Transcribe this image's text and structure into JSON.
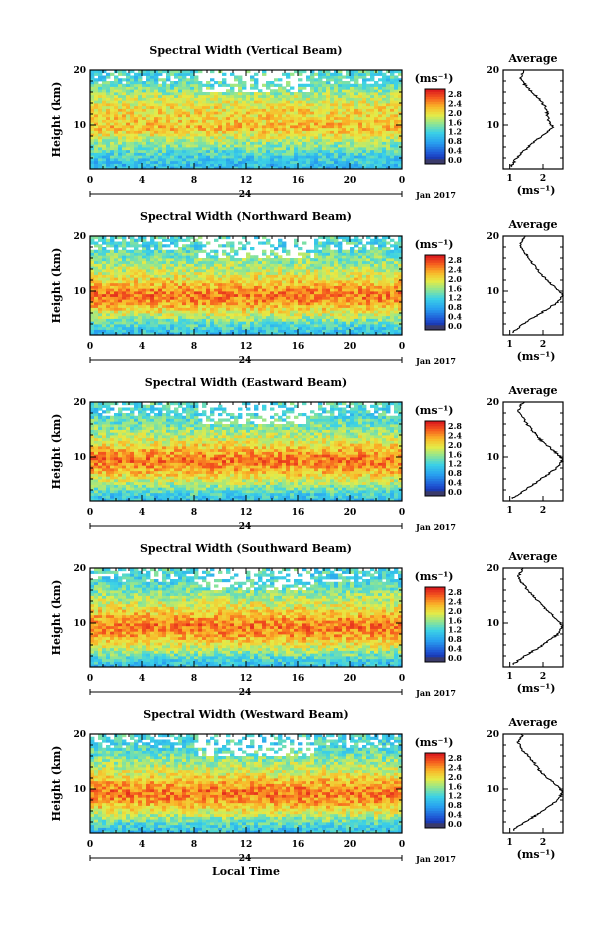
{
  "chart_data": [
    {
      "type": "heatmap",
      "title": "Spectral Width (Vertical Beam)",
      "ylabel": "Height (km)",
      "xlabel": "",
      "x_ticks": [
        "0",
        "4",
        "8",
        "12",
        "16",
        "20",
        "0"
      ],
      "xlim": [
        0,
        24
      ],
      "y_ticks": [
        "20",
        "10"
      ],
      "ylim": [
        2,
        20
      ],
      "day_label": "24",
      "month_label": "Jan 2017",
      "colorbar": {
        "unit": "(ms⁻¹)",
        "ticks": [
          "2.8",
          "2.4",
          "2.0",
          "1.6",
          "1.2",
          "0.8",
          "0.4",
          "0.0"
        ],
        "range": [
          0,
          3.0
        ]
      },
      "average": {
        "title": "Average",
        "xlabel": "(ms⁻¹)",
        "x_ticks": [
          "1",
          "2"
        ],
        "xlim": [
          0.8,
          2.6
        ],
        "y_ticks": [
          "20",
          "10"
        ],
        "heights": [
          2.5,
          4,
          6,
          8,
          9.5,
          11,
          13,
          15,
          17,
          18.5,
          20
        ],
        "values": [
          1.05,
          1.2,
          1.55,
          1.95,
          2.3,
          2.15,
          2.1,
          1.85,
          1.5,
          1.3,
          1.45
        ]
      }
    },
    {
      "type": "heatmap",
      "title": "Spectral Width (Northward Beam)",
      "ylabel": "Height (km)",
      "xlabel": "",
      "x_ticks": [
        "0",
        "4",
        "8",
        "12",
        "16",
        "20",
        "0"
      ],
      "xlim": [
        0,
        24
      ],
      "y_ticks": [
        "20",
        "10"
      ],
      "ylim": [
        2,
        20
      ],
      "day_label": "24",
      "month_label": "Jan 2017",
      "colorbar": {
        "unit": "(ms⁻¹)",
        "ticks": [
          "2.8",
          "2.4",
          "2.0",
          "1.6",
          "1.2",
          "0.8",
          "0.4",
          "0.0"
        ],
        "range": [
          0,
          3.0
        ]
      },
      "average": {
        "title": "Average",
        "xlabel": "(ms⁻¹)",
        "x_ticks": [
          "1",
          "2"
        ],
        "xlim": [
          0.8,
          2.6
        ],
        "y_ticks": [
          "20",
          "10"
        ],
        "heights": [
          2.5,
          4,
          6,
          8,
          9.5,
          11,
          13,
          15,
          17,
          18.5,
          20
        ],
        "values": [
          1.1,
          1.4,
          1.95,
          2.45,
          2.6,
          2.3,
          1.95,
          1.7,
          1.45,
          1.3,
          1.45
        ]
      }
    },
    {
      "type": "heatmap",
      "title": "Spectral Width (Eastward Beam)",
      "ylabel": "Height (km)",
      "xlabel": "",
      "x_ticks": [
        "0",
        "4",
        "8",
        "12",
        "16",
        "20",
        "0"
      ],
      "xlim": [
        0,
        24
      ],
      "y_ticks": [
        "20",
        "10"
      ],
      "ylim": [
        2,
        20
      ],
      "day_label": "24",
      "month_label": "Jan 2017",
      "colorbar": {
        "unit": "(ms⁻¹)",
        "ticks": [
          "2.8",
          "2.4",
          "2.0",
          "1.6",
          "1.2",
          "0.8",
          "0.4",
          "0.0"
        ],
        "range": [
          0,
          3.0
        ]
      },
      "average": {
        "title": "Average",
        "xlabel": "",
        "x_ticks": [
          "1",
          "2"
        ],
        "xlim": [
          0.8,
          2.6
        ],
        "y_ticks": [
          "20",
          "10"
        ],
        "heights": [
          2.5,
          4,
          6,
          8,
          9.5,
          11,
          13,
          15,
          17,
          18.5,
          20
        ],
        "values": [
          1.1,
          1.45,
          1.95,
          2.4,
          2.6,
          2.35,
          1.95,
          1.65,
          1.4,
          1.25,
          1.4
        ]
      }
    },
    {
      "type": "heatmap",
      "title": "Spectral Width (Southward Beam)",
      "ylabel": "Height (km)",
      "xlabel": "",
      "x_ticks": [
        "0",
        "4",
        "8",
        "12",
        "16",
        "20",
        "0"
      ],
      "xlim": [
        0,
        24
      ],
      "y_ticks": [
        "20",
        "10"
      ],
      "ylim": [
        2,
        20
      ],
      "day_label": "24",
      "month_label": "Jan 2017",
      "colorbar": {
        "unit": "(ms⁻¹)",
        "ticks": [
          "2.8",
          "2.4",
          "2.0",
          "1.6",
          "1.2",
          "0.8",
          "0.4",
          "0.0"
        ],
        "range": [
          0,
          3.0
        ]
      },
      "average": {
        "title": "Average",
        "xlabel": "(ms⁻¹)",
        "x_ticks": [
          "1",
          "2"
        ],
        "xlim": [
          0.8,
          2.6
        ],
        "y_ticks": [
          "20",
          "10"
        ],
        "heights": [
          2.5,
          4,
          6,
          8,
          9.5,
          11,
          13,
          15,
          17,
          18.5,
          20
        ],
        "values": [
          1.1,
          1.45,
          2.0,
          2.45,
          2.6,
          2.35,
          2.0,
          1.7,
          1.4,
          1.25,
          1.4
        ]
      }
    },
    {
      "type": "heatmap",
      "title": "Spectral Width (Westward Beam)",
      "ylabel": "Height (km)",
      "xlabel": "Local Time",
      "x_ticks": [
        "0",
        "4",
        "8",
        "12",
        "16",
        "20",
        "0"
      ],
      "xlim": [
        0,
        24
      ],
      "y_ticks": [
        "20",
        "10"
      ],
      "ylim": [
        2,
        20
      ],
      "day_label": "24",
      "month_label": "Jan 2017",
      "colorbar": {
        "unit": "(ms⁻¹)",
        "ticks": [
          "2.8",
          "2.4",
          "2.0",
          "1.6",
          "1.2",
          "0.8",
          "0.4",
          "0.0"
        ],
        "range": [
          0,
          3.0
        ]
      },
      "average": {
        "title": "Average",
        "xlabel": "(ms⁻¹)",
        "x_ticks": [
          "1",
          "2"
        ],
        "xlim": [
          0.8,
          2.6
        ],
        "y_ticks": [
          "20",
          "10"
        ],
        "heights": [
          2.5,
          4,
          6,
          8,
          9.5,
          11,
          13,
          15,
          17,
          18.5,
          20
        ],
        "values": [
          1.1,
          1.45,
          2.0,
          2.45,
          2.6,
          2.35,
          1.95,
          1.7,
          1.4,
          1.25,
          1.4
        ]
      }
    }
  ]
}
